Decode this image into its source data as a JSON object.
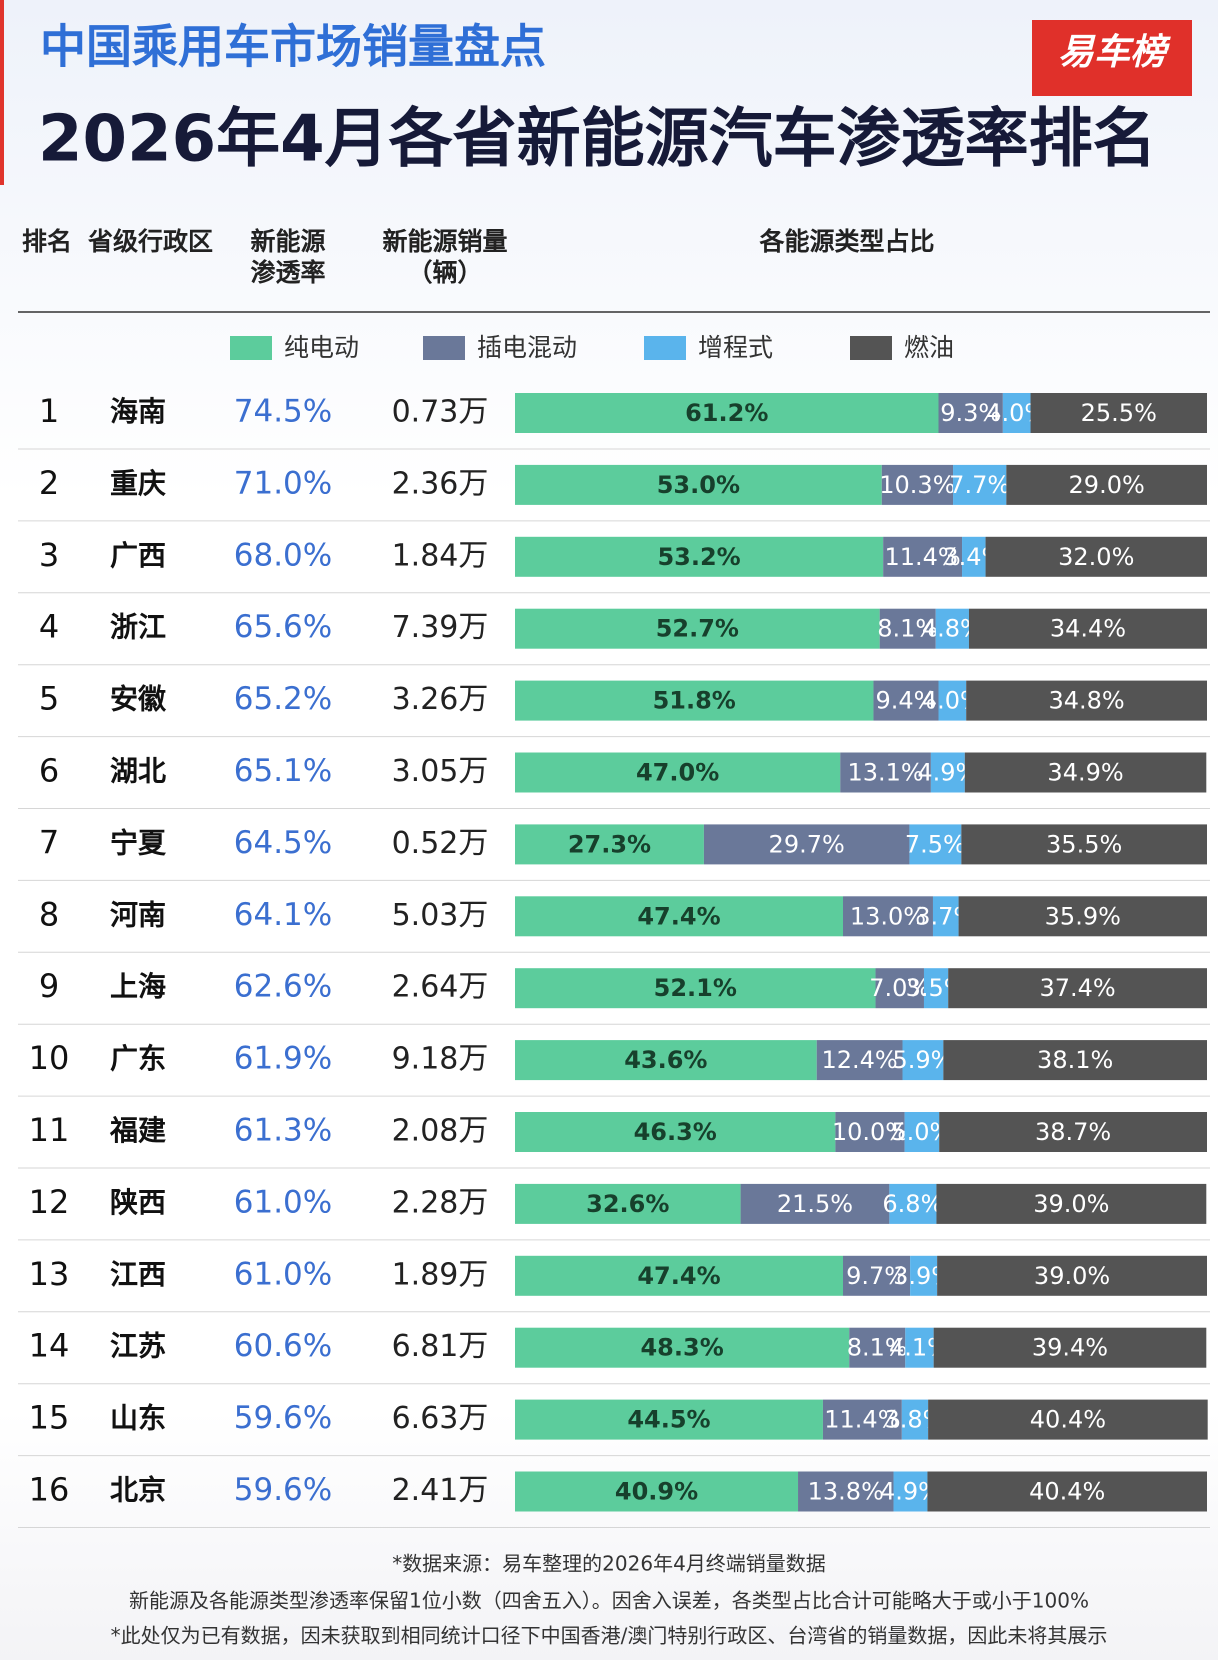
{
  "header": {
    "subtitle": "中国乘用车市场销量盘点",
    "title": "2026年4月各省新能源汽车渗透率排名",
    "logo": "易车榜"
  },
  "table": {
    "columns": [
      "排名",
      "省级行政区",
      [
        "新能源",
        "渗透率"
      ],
      [
        "新能源销量",
        "（辆）"
      ],
      "各能源类型占比"
    ],
    "rows": [
      [
        "1",
        "海南",
        "74.5%",
        "0.73万"
      ],
      [
        "2",
        "重庆",
        "71.0%",
        "2.36万"
      ],
      [
        "3",
        "广西",
        "68.0%",
        "1.84万"
      ],
      [
        "4",
        "浙江",
        "65.6%",
        "7.39万"
      ],
      [
        "5",
        "安徽",
        "65.2%",
        "3.26万"
      ],
      [
        "6",
        "湖北",
        "65.1%",
        "3.05万"
      ],
      [
        "7",
        "宁夏",
        "64.5%",
        "0.52万"
      ],
      [
        "8",
        "河南",
        "64.1%",
        "5.03万"
      ],
      [
        "9",
        "上海",
        "62.6%",
        "2.64万"
      ],
      [
        "10",
        "广东",
        "61.9%",
        "9.18万"
      ],
      [
        "11",
        "福建",
        "61.3%",
        "2.08万"
      ],
      [
        "12",
        "陕西",
        "61.0%",
        "2.28万"
      ],
      [
        "13",
        "江西",
        "61.0%",
        "1.89万"
      ],
      [
        "14",
        "江苏",
        "60.6%",
        "6.81万"
      ],
      [
        "15",
        "山东",
        "59.6%",
        "6.63万"
      ],
      [
        "16",
        "北京",
        "59.6%",
        "2.41万"
      ]
    ]
  },
  "chart_data": {
    "type": "stacked-bar",
    "orientation": "horizontal",
    "series": [
      {
        "name": "纯电动",
        "color": "#5ccc9c",
        "values": [
          61.2,
          53.0,
          53.2,
          52.7,
          51.8,
          47.0,
          27.3,
          47.4,
          52.1,
          43.6,
          46.3,
          32.6,
          47.4,
          48.3,
          44.5,
          40.9
        ],
        "value_labels": [
          "61.2%",
          "53.0%",
          "53.2%",
          "52.7%",
          "51.8%",
          "47.0%",
          "27.3%",
          "47.4%",
          "52.1%",
          "43.6%",
          "46.3%",
          "32.6%",
          "47.4%",
          "48.3%",
          "44.5%",
          "40.9%"
        ]
      },
      {
        "name": "插电混动",
        "color": "#6a7899",
        "values": [
          9.3,
          10.3,
          11.4,
          8.1,
          9.4,
          13.1,
          29.7,
          13.0,
          7.0,
          12.4,
          10.0,
          21.5,
          9.7,
          8.1,
          11.4,
          13.8
        ],
        "value_labels": [
          "9.3%",
          "10.3%",
          "11.4%",
          "8.1%",
          "9.4%",
          "13.1%",
          "29.7%",
          "13.0%",
          "7.0%",
          "12.4%",
          "10.0%",
          "21.5%",
          "9.7%",
          "8.1%",
          "11.4%",
          "13.8%"
        ]
      },
      {
        "name": "增程式",
        "color": "#5ab4ec",
        "values": [
          4.0,
          7.7,
          3.4,
          4.8,
          4.0,
          4.9,
          7.5,
          3.7,
          3.5,
          5.9,
          5.0,
          6.8,
          3.9,
          4.1,
          3.8,
          4.9
        ],
        "value_labels": [
          "4.0%",
          "7.7%",
          "3.4%",
          "4.8%",
          "4.0%",
          "4.9%",
          "7.5%",
          "3.7%",
          "3.5%",
          "5.9%",
          "5.0%",
          "6.8%",
          "3.9%",
          "4.1%",
          "3.8%",
          "4.9%"
        ]
      },
      {
        "name": "燃油",
        "color": "#545454",
        "values": [
          25.5,
          29.0,
          32.0,
          34.4,
          34.8,
          34.9,
          35.5,
          35.9,
          37.4,
          38.1,
          38.7,
          39.0,
          39.0,
          39.4,
          40.4,
          40.4
        ],
        "value_labels": [
          "25.5%",
          "29.0%",
          "32.0%",
          "34.4%",
          "34.8%",
          "34.9%",
          "35.5%",
          "35.9%",
          "37.4%",
          "38.1%",
          "38.7%",
          "39.0%",
          "39.0%",
          "39.4%",
          "40.4%",
          "40.4%"
        ]
      }
    ],
    "xlim": [
      0,
      100
    ]
  },
  "footer": [
    "*数据来源：易车整理的2026年4月终端销量数据",
    "新能源及各能源类型渗透率保留1位小数（四舍五入）。因舍入误差，各类型占比合计可能略大于或小于100%",
    "*此处仅为已有数据，因未获取到相同统计口径下中国香港/澳门特别行政区、台湾省的销量数据，因此未将其展示"
  ]
}
